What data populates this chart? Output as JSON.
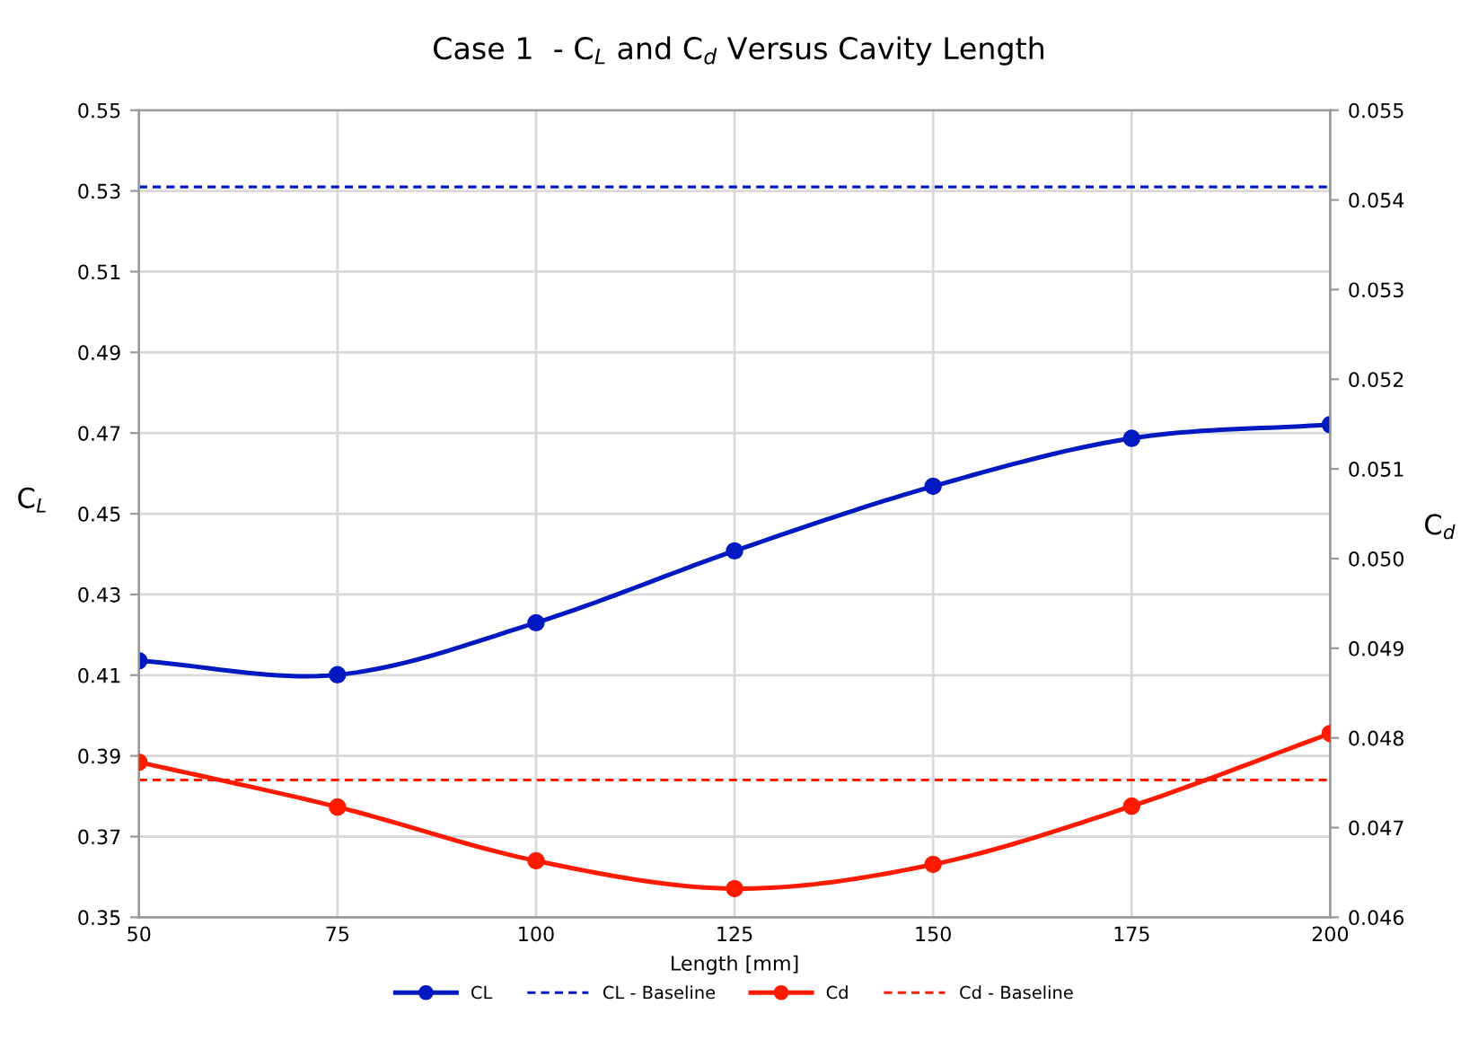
{
  "chart_data": {
    "type": "line",
    "title": "Case 1  - C$_{L}$ and C$_{d}$ Versus Cavity Length",
    "xlabel": "Length [mm]",
    "ylabel": "C$_{L}$",
    "y2label": "C$_{d}$",
    "x": [
      50,
      75,
      100,
      125,
      150,
      175,
      200
    ],
    "series": [
      {
        "name": "CL",
        "color": "#0019c0",
        "values": [
          0.4136,
          0.4101,
          0.423,
          0.4408,
          0.4568,
          0.4687,
          0.4721
        ]
      },
      {
        "name": "Cd",
        "color": "#ff1a00",
        "axis": "y2",
        "values": [
          0.04773,
          0.04723,
          0.04663,
          0.04632,
          0.04659,
          0.04724,
          0.04805
        ]
      }
    ],
    "ref_lines": [
      {
        "axis": "y",
        "value": 0.531,
        "label": "CL - Baseline",
        "color": "#0019c0",
        "line_style": "dashed"
      },
      {
        "axis": "y2",
        "value": 0.04753,
        "label": "Cd - Baseline",
        "color": "#ff1a00",
        "line_style": "dashed"
      }
    ],
    "xlim": [
      50,
      200
    ],
    "xticks": [
      50,
      75,
      100,
      125,
      150,
      175,
      200
    ],
    "ylim": [
      0.35,
      0.55
    ],
    "yticks": [
      0.35,
      0.37,
      0.39,
      0.41,
      0.43,
      0.45,
      0.47,
      0.49,
      0.51,
      0.53,
      0.55
    ],
    "y2lim": [
      0.046,
      0.055
    ],
    "y2ticks": [
      0.046,
      0.047,
      0.048,
      0.049,
      {
        "value": 0.05,
        "label": "0.050"
      },
      0.051,
      0.052,
      0.053,
      0.054,
      0.055
    ],
    "grid": true,
    "legend": "bottom",
    "marker": "circle",
    "line_style": "solid"
  }
}
